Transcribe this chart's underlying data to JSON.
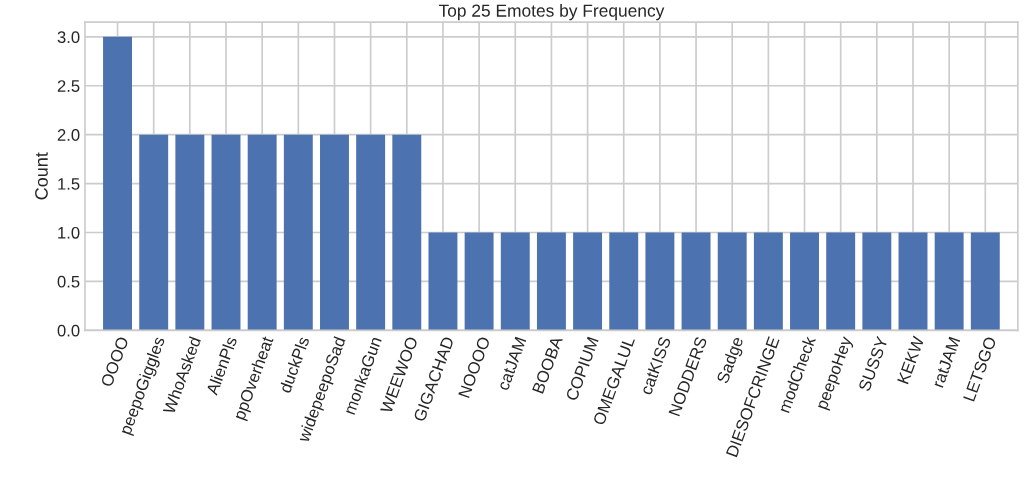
{
  "chart_data": {
    "type": "bar",
    "title": "Top 25 Emotes by Frequency",
    "ylabel": "Count",
    "categories": [
      "OOOO",
      "peepoGiggles",
      "WhoAsked",
      "AlienPls",
      "ppOverheat",
      "duckPls",
      "widepeepoSad",
      "monkaGun",
      "WEEWOO",
      "GIGACHAD",
      "NOOOO",
      "catJAM",
      "BOOBA",
      "COPIUM",
      "OMEGALUL",
      "catKISS",
      "NODDERS",
      "Sadge",
      "DIESOFCRINGE",
      "modCheck",
      "peepoHey",
      "SUSSY",
      "KEKW",
      "ratJAM",
      "LETSGO"
    ],
    "values": [
      3,
      2,
      2,
      2,
      2,
      2,
      2,
      2,
      2,
      1,
      1,
      1,
      1,
      1,
      1,
      1,
      1,
      1,
      1,
      1,
      1,
      1,
      1,
      1,
      1
    ],
    "color": "#4c72b0",
    "ylim": [
      0,
      3.15
    ],
    "yticks": [
      {
        "value": 0,
        "label": "0.0"
      },
      {
        "value": 0.5,
        "label": "0.5"
      },
      {
        "value": 1,
        "label": "1.0"
      },
      {
        "value": 1.5,
        "label": "1.5"
      },
      {
        "value": 2,
        "label": "2.0"
      },
      {
        "value": 2.5,
        "label": "2.5"
      },
      {
        "value": 3,
        "label": "3.0"
      }
    ],
    "grid": true
  }
}
